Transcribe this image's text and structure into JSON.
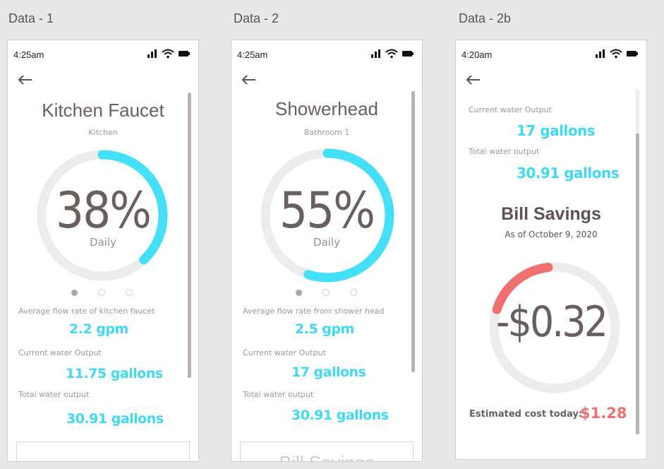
{
  "frames": [
    {
      "title": "Data - 1",
      "time": "4:25am",
      "device_name": "Kitchen Faucet",
      "location": "Kitchen",
      "percent": "38%",
      "percent_value": 0.38,
      "period": "Daily",
      "ring_color": "#44e0f8",
      "flow_label": "Average flow rate of kitchen faucet",
      "flow_value": "2.2 gpm",
      "current_label": "Current water Output",
      "current_value": "11.75 gallons",
      "total_label": "Total water output",
      "total_value": "30.91 gallons"
    },
    {
      "title": "Data - 2",
      "time": "4:25am",
      "device_name": "Showerhead",
      "location": "Bathroom 1",
      "percent": "55%",
      "percent_value": 0.55,
      "period": "Daily",
      "ring_color": "#44e0f8",
      "flow_label": "Average flow rate from shower head",
      "flow_value": "2.5 gpm",
      "current_label": "Current water Output",
      "current_value": "17 gallons",
      "total_label": "Total water output",
      "total_value": "30.91 gallons",
      "next_section_peek": "Bill Savings"
    },
    {
      "title": "Data - 2b",
      "time": "4:20am",
      "current_label": "Current water Output",
      "current_value": "17 gallons",
      "total_label": "Total water output",
      "total_value": "30.91 gallons",
      "section_title": "Bill Savings",
      "as_of": "As of October 9, 2020",
      "savings": "-$0.32",
      "cost_label": "Estimated cost today:",
      "cost_value": "$1.28"
    }
  ],
  "icons": {
    "back": "arrow-left-icon",
    "signal": "signal-bars-icon",
    "wifi": "wifi-icon",
    "battery": "battery-icon"
  },
  "colors": {
    "accent": "#44e0f8",
    "value_text": "#3fd9f5",
    "negative": "#f07070",
    "ring_track": "#ececec",
    "heading": "#6b5e5e"
  }
}
